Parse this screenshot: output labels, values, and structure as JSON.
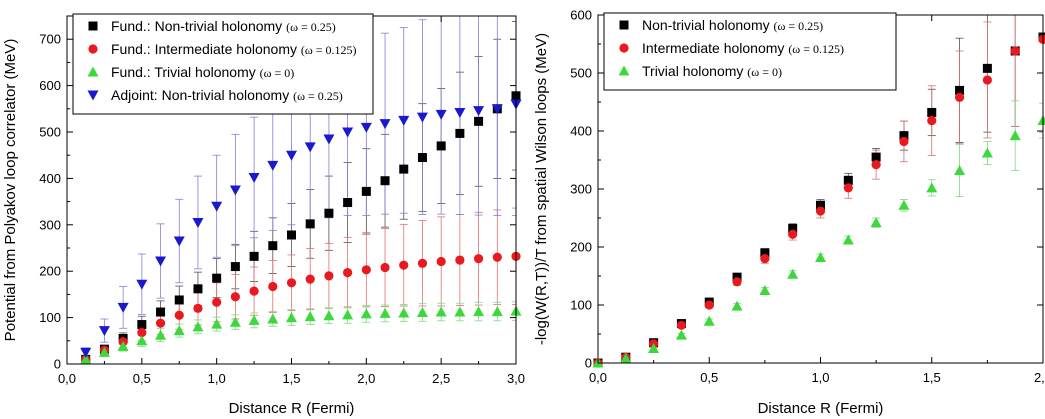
{
  "chart_data": [
    {
      "type": "scatter",
      "title": "",
      "xlabel": "Distance R (Fermi)",
      "ylabel": "Potential from Polyakov loop correlator (MeV)",
      "xlim": [
        0.0,
        3.0
      ],
      "ylim": [
        0,
        750
      ],
      "x_ticks": [
        "0,0",
        "0,5",
        "1,0",
        "1,5",
        "2,0",
        "2,5",
        "3,0"
      ],
      "y_ticks": [
        "0",
        "100",
        "200",
        "300",
        "400",
        "500",
        "600",
        "700"
      ],
      "x_tick_values": [
        0.0,
        0.5,
        1.0,
        1.5,
        2.0,
        2.5,
        3.0
      ],
      "y_tick_values": [
        0,
        100,
        200,
        300,
        400,
        500,
        600,
        700
      ],
      "grid": false,
      "legend_position": "top-left",
      "series": [
        {
          "name": "Fund.: Non-trivial holonomy",
          "param": "(ω = 0.25)",
          "marker": "square",
          "color": "#000000",
          "errcolor": "#505050",
          "x": [
            0.125,
            0.25,
            0.375,
            0.5,
            0.625,
            0.75,
            0.875,
            1.0,
            1.125,
            1.25,
            1.375,
            1.5,
            1.625,
            1.75,
            1.875,
            2.0,
            2.125,
            2.25,
            2.375,
            2.5,
            2.625,
            2.75,
            2.875,
            3.0
          ],
          "y": [
            10,
            32,
            55,
            85,
            112,
            138,
            162,
            185,
            210,
            232,
            255,
            278,
            302,
            325,
            348,
            372,
            395,
            420,
            445,
            470,
            497,
            523,
            550,
            578
          ],
          "err": [
            5,
            8,
            12,
            18,
            24,
            30,
            36,
            42,
            48,
            54,
            60,
            68,
            74,
            80,
            86,
            92,
            100,
            108,
            116,
            124,
            132,
            140,
            150,
            160
          ]
        },
        {
          "name": "Fund.: Intermediate holonomy",
          "param": "(ω = 0.125)",
          "marker": "circle",
          "color": "#e8191f",
          "errcolor": "#e07070",
          "x": [
            0.125,
            0.25,
            0.375,
            0.5,
            0.625,
            0.75,
            0.875,
            1.0,
            1.125,
            1.25,
            1.375,
            1.5,
            1.625,
            1.75,
            1.875,
            2.0,
            2.125,
            2.25,
            2.375,
            2.5,
            2.625,
            2.75,
            2.875,
            3.0
          ],
          "y": [
            10,
            30,
            48,
            68,
            88,
            105,
            120,
            133,
            145,
            157,
            167,
            175,
            183,
            190,
            197,
            203,
            208,
            213,
            217,
            221,
            224,
            227,
            230,
            232
          ],
          "err": [
            4,
            8,
            12,
            18,
            24,
            30,
            36,
            42,
            48,
            52,
            56,
            60,
            66,
            70,
            76,
            80,
            84,
            88,
            92,
            96,
            98,
            100,
            102,
            104
          ]
        },
        {
          "name": "Fund.: Trivial holonomy",
          "param": "(ω = 0)",
          "marker": "triangle-up",
          "color": "#3cd83c",
          "errcolor": "#80d880",
          "x": [
            0.125,
            0.25,
            0.375,
            0.5,
            0.625,
            0.75,
            0.875,
            1.0,
            1.125,
            1.25,
            1.375,
            1.5,
            1.625,
            1.75,
            1.875,
            2.0,
            2.125,
            2.25,
            2.375,
            2.5,
            2.625,
            2.75,
            2.875,
            3.0
          ],
          "y": [
            10,
            25,
            38,
            50,
            62,
            72,
            80,
            86,
            90,
            94,
            97,
            100,
            102,
            104,
            106,
            108,
            109,
            110,
            111,
            112,
            112,
            113,
            113,
            114
          ],
          "err": [
            5,
            8,
            10,
            12,
            14,
            14,
            15,
            15,
            16,
            16,
            16,
            17,
            17,
            17,
            18,
            18,
            18,
            18,
            19,
            19,
            19,
            20,
            20,
            20
          ]
        },
        {
          "name": "Adjoint: Non-trivial holonomy",
          "param": "(ω = 0.25)",
          "marker": "triangle-down",
          "color": "#1a1acc",
          "errcolor": "#8080d8",
          "x": [
            0.125,
            0.25,
            0.375,
            0.5,
            0.625,
            0.75,
            0.875,
            1.0,
            1.125,
            1.25,
            1.375,
            1.5,
            1.625,
            1.75,
            1.875,
            2.0,
            2.125,
            2.25,
            2.375,
            2.5,
            2.625,
            2.75,
            2.875,
            3.0
          ],
          "y": [
            25,
            72,
            122,
            172,
            222,
            265,
            305,
            340,
            375,
            402,
            428,
            450,
            468,
            485,
            500,
            510,
            518,
            525,
            532,
            538,
            542,
            546,
            550,
            560
          ],
          "err": [
            10,
            25,
            45,
            65,
            80,
            90,
            100,
            110,
            120,
            130,
            140,
            150,
            160,
            170,
            180,
            190,
            195,
            200,
            210,
            215,
            220,
            225,
            230,
            240
          ]
        }
      ]
    },
    {
      "type": "scatter",
      "title": "",
      "xlabel": "Distance R (Fermi)",
      "ylabel": "-log(W(R,T))/T from spatial Wilson loops (MeV)",
      "xlim": [
        0.0,
        2.0
      ],
      "ylim": [
        0,
        600
      ],
      "x_ticks": [
        "0,0",
        "0,5",
        "1,0",
        "1,5",
        "2,0"
      ],
      "y_ticks": [
        "0",
        "100",
        "200",
        "300",
        "400",
        "500",
        "600"
      ],
      "x_tick_values": [
        0.0,
        0.5,
        1.0,
        1.5,
        2.0
      ],
      "y_tick_values": [
        0,
        100,
        200,
        300,
        400,
        500,
        600
      ],
      "grid": false,
      "legend_position": "top-left",
      "series": [
        {
          "name": "Non-trivial holonomy",
          "param": "(ω = 0.25)",
          "marker": "square",
          "color": "#000000",
          "errcolor": "#505050",
          "x": [
            0.0,
            0.125,
            0.25,
            0.375,
            0.5,
            0.625,
            0.75,
            0.875,
            1.0,
            1.125,
            1.25,
            1.375,
            1.5,
            1.625,
            1.75,
            1.875,
            2.0
          ],
          "y": [
            0,
            10,
            35,
            68,
            105,
            148,
            190,
            232,
            272,
            315,
            355,
            392,
            432,
            470,
            508,
            538,
            562
          ],
          "err": [
            0,
            2,
            3,
            4,
            5,
            6,
            7,
            8,
            10,
            12,
            15,
            25,
            40,
            90,
            110,
            130,
            150
          ]
        },
        {
          "name": "Intermediate holonomy",
          "param": "(ω = 0.125)",
          "marker": "circle",
          "color": "#e8191f",
          "errcolor": "#d87070",
          "x": [
            0.0,
            0.125,
            0.25,
            0.375,
            0.5,
            0.625,
            0.75,
            0.875,
            1.0,
            1.125,
            1.25,
            1.375,
            1.5,
            1.625,
            1.75,
            1.875,
            2.0
          ],
          "y": [
            0,
            10,
            33,
            65,
            100,
            140,
            180,
            222,
            262,
            302,
            342,
            382,
            418,
            458,
            488,
            538,
            558
          ],
          "err": [
            0,
            2,
            3,
            4,
            5,
            6,
            8,
            10,
            12,
            18,
            25,
            35,
            60,
            80,
            100,
            130,
            160
          ]
        },
        {
          "name": "Trivial holonomy",
          "param": "(ω = 0)",
          "marker": "triangle-up",
          "color": "#3cd83c",
          "errcolor": "#80d880",
          "x": [
            0.0,
            0.125,
            0.25,
            0.375,
            0.5,
            0.625,
            0.75,
            0.875,
            1.0,
            1.125,
            1.25,
            1.375,
            1.5,
            1.625,
            1.75,
            1.875,
            2.0
          ],
          "y": [
            0,
            8,
            25,
            48,
            72,
            98,
            125,
            153,
            182,
            212,
            242,
            272,
            302,
            332,
            362,
            392,
            418
          ],
          "err": [
            0,
            1,
            2,
            3,
            4,
            5,
            5,
            6,
            6,
            7,
            8,
            10,
            14,
            45,
            20,
            60,
            30
          ]
        }
      ]
    }
  ]
}
